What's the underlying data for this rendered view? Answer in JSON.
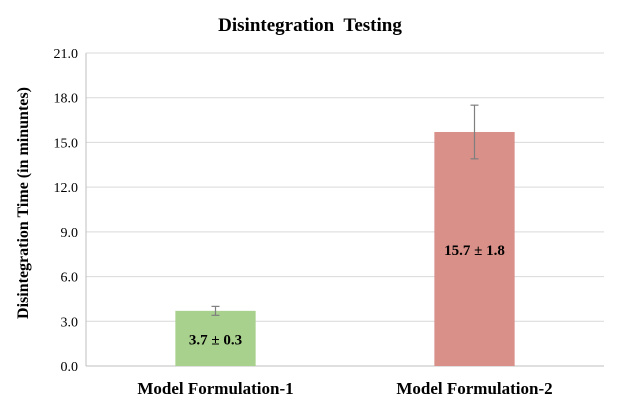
{
  "chart_data": {
    "type": "bar",
    "title": "Disintegration  Testing",
    "ylabel": "Disintegration Time (in minuntes)",
    "xlabel": "",
    "categories": [
      "Model Formulation-1",
      "Model Formulation-2"
    ],
    "values": [
      3.7,
      15.7
    ],
    "errors": [
      0.3,
      1.8
    ],
    "bar_labels": [
      "3.7 ± 0.3",
      "15.7 ± 1.8"
    ],
    "bar_colors": [
      "#a9d18e",
      "#d99089"
    ],
    "ylim": [
      0,
      21
    ],
    "yticks": [
      "0.0",
      "3.0",
      "6.0",
      "9.0",
      "12.0",
      "15.0",
      "18.0",
      "21.0"
    ],
    "grid": true,
    "legend": "none"
  }
}
